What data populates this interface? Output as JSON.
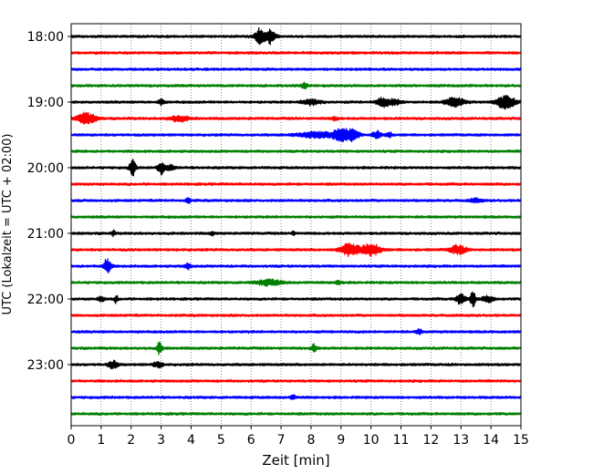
{
  "chart_data": {
    "type": "line",
    "title": "",
    "xlabel": "Zeit  [min]",
    "ylabel": "UTC (Lokalzeit = UTC + 02:00)",
    "xlim": [
      0,
      15
    ],
    "x_ticks": [
      "0",
      "1",
      "2",
      "3",
      "4",
      "5",
      "6",
      "7",
      "8",
      "9",
      "10",
      "11",
      "12",
      "13",
      "14",
      "15"
    ],
    "y_ticks": [
      "18:00",
      "19:00",
      "20:00",
      "21:00",
      "22:00",
      "23:00"
    ],
    "grid": "vertical dotted at each minute",
    "trace_interval_min": 15,
    "start_time": "18:00",
    "colors": [
      "#000000",
      "#ff0000",
      "#0000ff",
      "#008000"
    ],
    "traces": [
      {
        "start": "18:00",
        "color": "#000000",
        "events": [
          {
            "t": 6.3,
            "amp": 9,
            "width": 0.15
          },
          {
            "t": 6.65,
            "amp": 8,
            "width": 0.15
          }
        ]
      },
      {
        "start": "18:15",
        "color": "#ff0000",
        "events": []
      },
      {
        "start": "18:30",
        "color": "#0000ff",
        "events": []
      },
      {
        "start": "18:45",
        "color": "#008000",
        "events": [
          {
            "t": 7.8,
            "amp": 3,
            "width": 0.1
          }
        ]
      },
      {
        "start": "19:00",
        "color": "#000000",
        "events": [
          {
            "t": 3.0,
            "amp": 3,
            "width": 0.1
          },
          {
            "t": 8.0,
            "amp": 3,
            "width": 0.3
          },
          {
            "t": 10.4,
            "amp": 5,
            "width": 0.2
          },
          {
            "t": 10.8,
            "amp": 3,
            "width": 0.2
          },
          {
            "t": 12.8,
            "amp": 5,
            "width": 0.3
          },
          {
            "t": 14.5,
            "amp": 7,
            "width": 0.3
          }
        ]
      },
      {
        "start": "19:15",
        "color": "#ff0000",
        "events": [
          {
            "t": 0.5,
            "amp": 6,
            "width": 0.3
          },
          {
            "t": 3.6,
            "amp": 3,
            "width": 0.3
          },
          {
            "t": 8.8,
            "amp": 2,
            "width": 0.1
          }
        ]
      },
      {
        "start": "19:30",
        "color": "#0000ff",
        "events": [
          {
            "t": 8.2,
            "amp": 3,
            "width": 0.6
          },
          {
            "t": 9.0,
            "amp": 7,
            "width": 0.25
          },
          {
            "t": 9.4,
            "amp": 6,
            "width": 0.2
          },
          {
            "t": 10.2,
            "amp": 4,
            "width": 0.15
          },
          {
            "t": 10.6,
            "amp": 3,
            "width": 0.1
          }
        ]
      },
      {
        "start": "19:45",
        "color": "#008000",
        "events": []
      },
      {
        "start": "20:00",
        "color": "#000000",
        "events": [
          {
            "t": 2.05,
            "amp": 9,
            "width": 0.1
          },
          {
            "t": 3.0,
            "amp": 7,
            "width": 0.1
          },
          {
            "t": 3.3,
            "amp": 3,
            "width": 0.15
          }
        ]
      },
      {
        "start": "20:15",
        "color": "#ff0000",
        "events": []
      },
      {
        "start": "20:30",
        "color": "#0000ff",
        "events": [
          {
            "t": 3.9,
            "amp": 4,
            "width": 0.06
          },
          {
            "t": 13.5,
            "amp": 2,
            "width": 0.2
          }
        ]
      },
      {
        "start": "20:45",
        "color": "#008000",
        "events": []
      },
      {
        "start": "21:00",
        "color": "#000000",
        "events": [
          {
            "t": 1.4,
            "amp": 3,
            "width": 0.06
          },
          {
            "t": 4.7,
            "amp": 2,
            "width": 0.06
          },
          {
            "t": 7.4,
            "amp": 2,
            "width": 0.06
          }
        ]
      },
      {
        "start": "21:15",
        "color": "#ff0000",
        "events": [
          {
            "t": 9.3,
            "amp": 7,
            "width": 0.3
          },
          {
            "t": 10.0,
            "amp": 7,
            "width": 0.3
          },
          {
            "t": 12.9,
            "amp": 5,
            "width": 0.25
          }
        ]
      },
      {
        "start": "21:30",
        "color": "#0000ff",
        "events": [
          {
            "t": 1.2,
            "amp": 8,
            "width": 0.12
          },
          {
            "t": 3.9,
            "amp": 3,
            "width": 0.1
          }
        ]
      },
      {
        "start": "21:45",
        "color": "#008000",
        "events": [
          {
            "t": 6.6,
            "amp": 3,
            "width": 0.4
          },
          {
            "t": 8.9,
            "amp": 2,
            "width": 0.1
          }
        ]
      },
      {
        "start": "22:00",
        "color": "#000000",
        "events": [
          {
            "t": 1.0,
            "amp": 3,
            "width": 0.1
          },
          {
            "t": 1.5,
            "amp": 4,
            "width": 0.06
          },
          {
            "t": 13.0,
            "amp": 6,
            "width": 0.15
          },
          {
            "t": 13.4,
            "amp": 9,
            "width": 0.08
          },
          {
            "t": 13.9,
            "amp": 3,
            "width": 0.2
          }
        ]
      },
      {
        "start": "22:15",
        "color": "#ff0000",
        "events": []
      },
      {
        "start": "22:30",
        "color": "#0000ff",
        "events": [
          {
            "t": 11.6,
            "amp": 3,
            "width": 0.08
          }
        ]
      },
      {
        "start": "22:45",
        "color": "#008000",
        "events": [
          {
            "t": 2.95,
            "amp": 7,
            "width": 0.08
          },
          {
            "t": 8.1,
            "amp": 4,
            "width": 0.1
          }
        ]
      },
      {
        "start": "23:00",
        "color": "#000000",
        "events": [
          {
            "t": 1.4,
            "amp": 4,
            "width": 0.15
          },
          {
            "t": 2.9,
            "amp": 3,
            "width": 0.15
          }
        ]
      },
      {
        "start": "23:15",
        "color": "#ff0000",
        "events": []
      },
      {
        "start": "23:30",
        "color": "#0000ff",
        "events": [
          {
            "t": 7.4,
            "amp": 2,
            "width": 0.1
          }
        ]
      },
      {
        "start": "23:45",
        "color": "#008000",
        "events": []
      }
    ]
  }
}
